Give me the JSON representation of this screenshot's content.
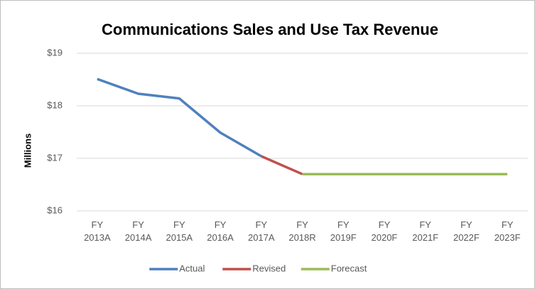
{
  "chart_data": {
    "type": "line",
    "title": "Communications Sales and Use Tax Revenue",
    "y_label": "Millions",
    "categories": [
      "FY 2013A",
      "FY 2014A",
      "FY 2015A",
      "FY 2016A",
      "FY 2017A",
      "FY 2018R",
      "FY 2019F",
      "FY 2020F",
      "FY 2021F",
      "FY 2022F",
      "FY 2023F"
    ],
    "series": [
      {
        "name": "Actual",
        "color": "#4f81bd",
        "values": [
          18.51,
          18.23,
          18.14,
          17.49,
          17.04,
          null,
          null,
          null,
          null,
          null,
          null
        ]
      },
      {
        "name": "Revised",
        "color": "#c0504d",
        "values": [
          null,
          null,
          null,
          null,
          17.04,
          16.7,
          null,
          null,
          null,
          null,
          null
        ]
      },
      {
        "name": "Forecast",
        "color": "#9bbb59",
        "values": [
          null,
          null,
          null,
          null,
          null,
          16.7,
          16.7,
          16.7,
          16.7,
          16.7,
          16.7
        ]
      }
    ],
    "ylim": [
      16,
      19
    ],
    "yticks": [
      {
        "value": 16,
        "label": "$16"
      },
      {
        "value": 17,
        "label": "$17"
      },
      {
        "value": 18,
        "label": "$18"
      },
      {
        "value": 19,
        "label": "$19"
      }
    ],
    "grid": true,
    "legend": "bottom"
  }
}
